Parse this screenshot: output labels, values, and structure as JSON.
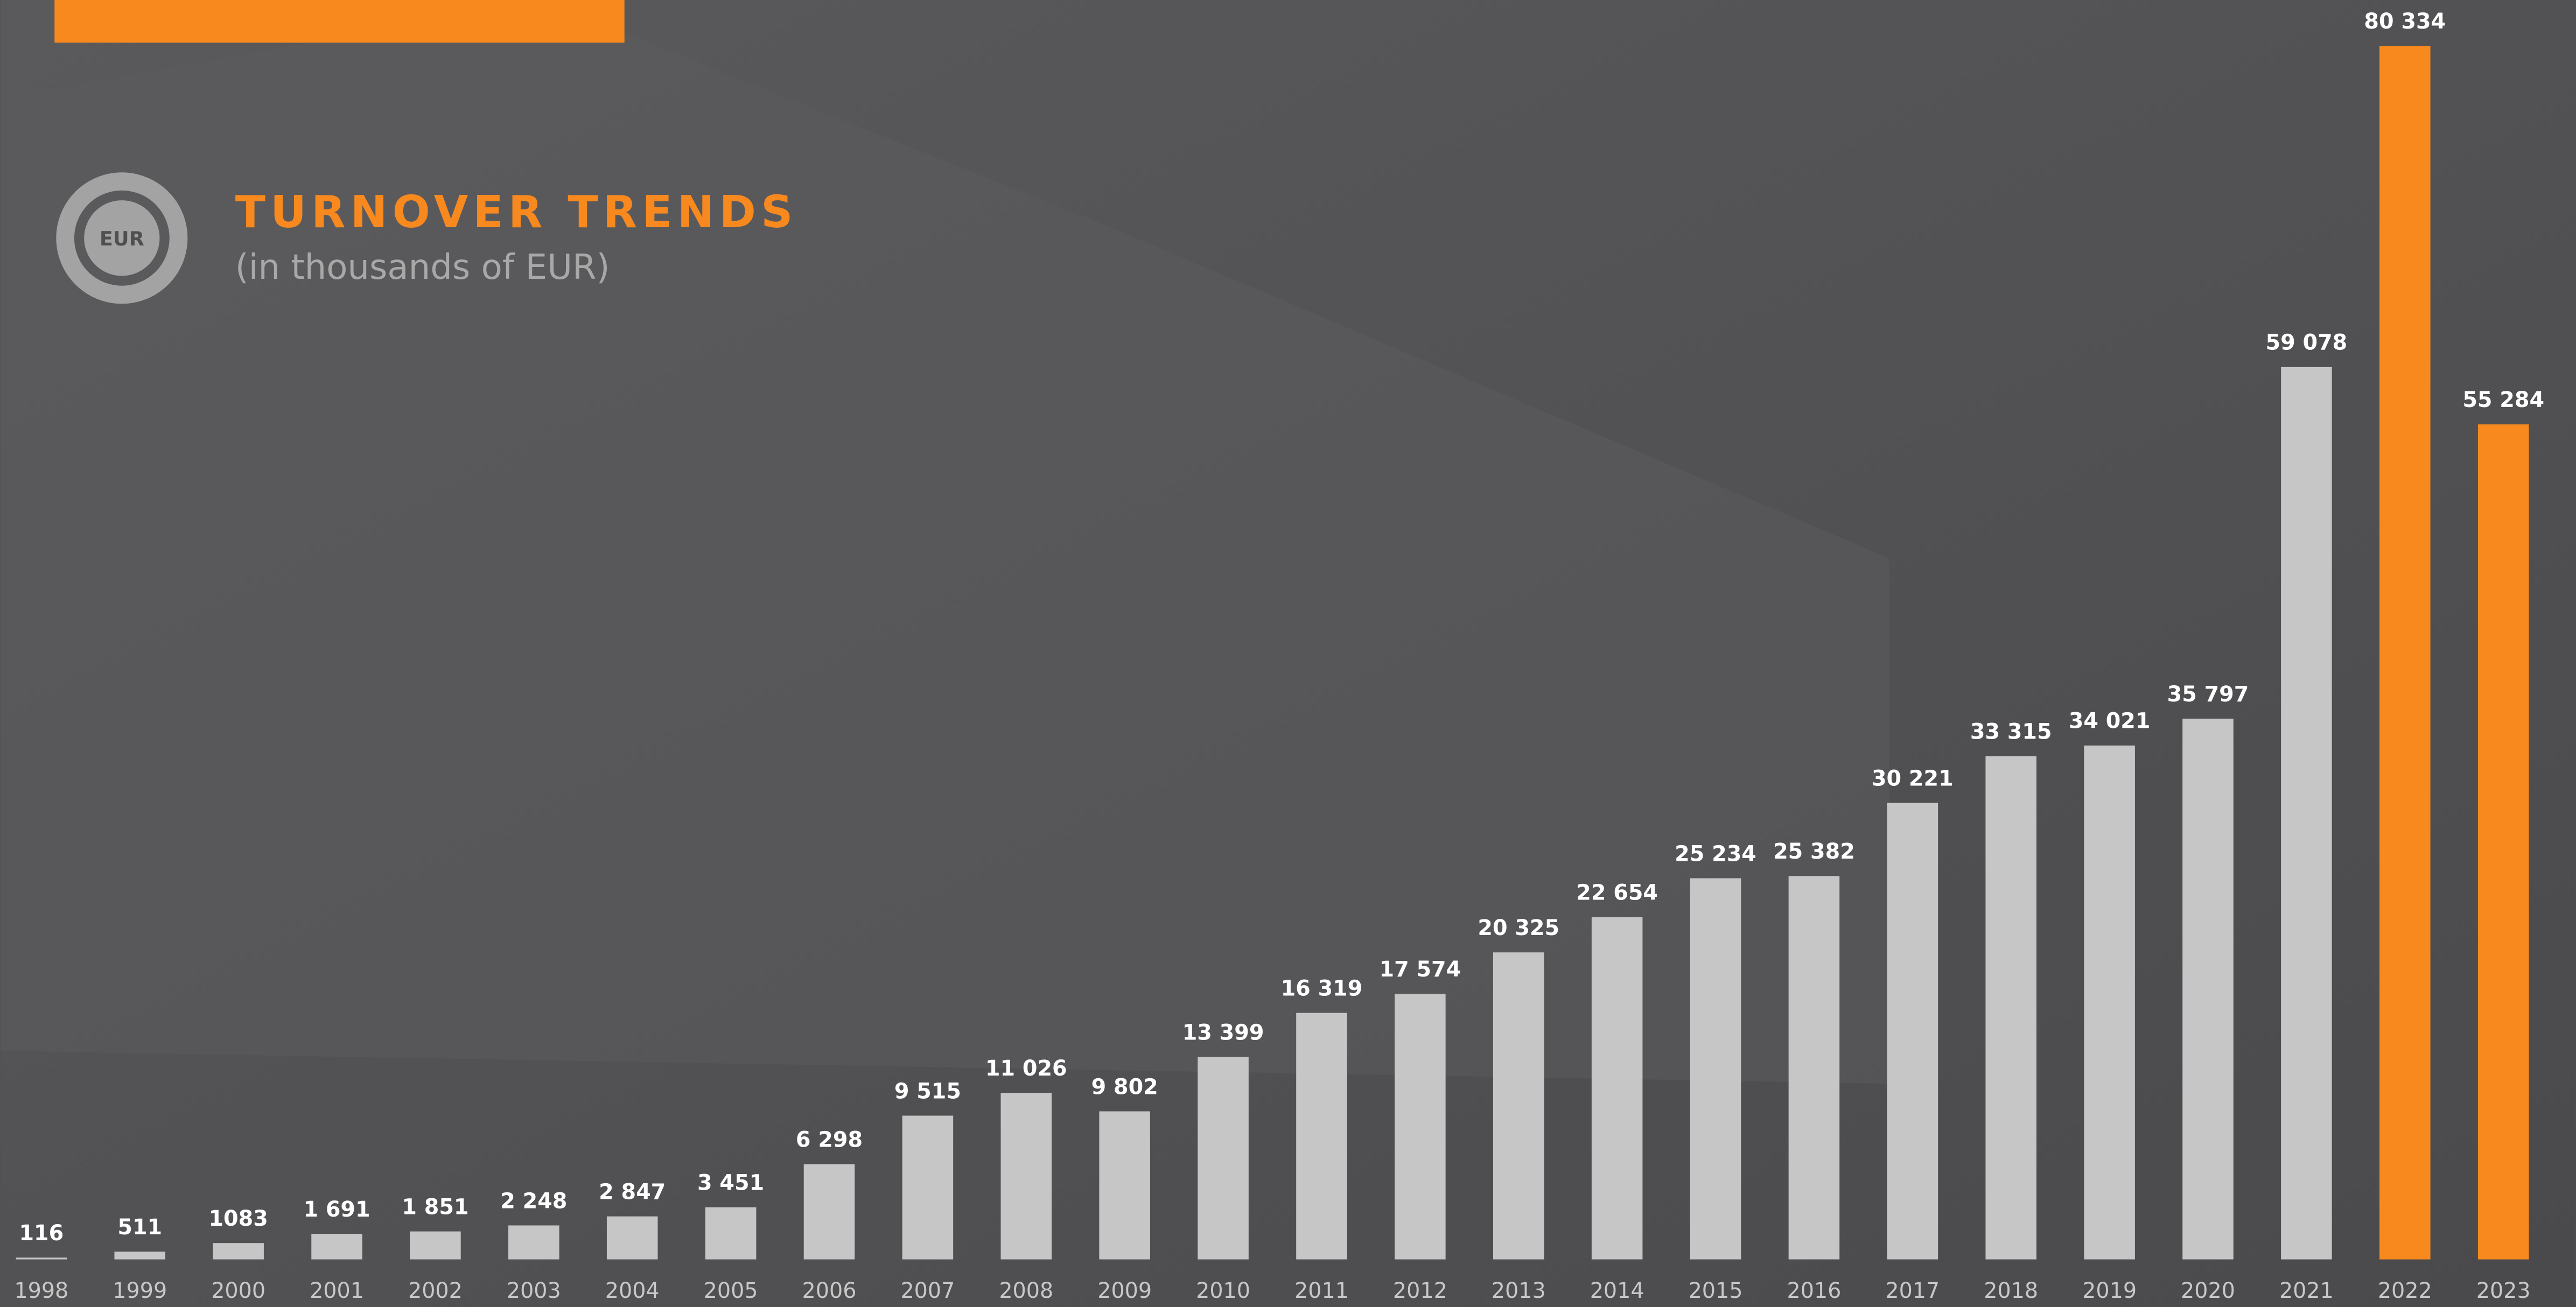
{
  "chart_data": {
    "type": "bar",
    "title": "TURNOVER TRENDS",
    "subtitle": "(in thousands of EUR)",
    "icon_label": "EUR",
    "categories": [
      "1998",
      "1999",
      "2000",
      "2001",
      "2002",
      "2003",
      "2004",
      "2005",
      "2006",
      "2007",
      "2008",
      "2009",
      "2010",
      "2011",
      "2012",
      "2013",
      "2014",
      "2015",
      "2016",
      "2017",
      "2018",
      "2019",
      "2020",
      "2021",
      "2022",
      "2023"
    ],
    "values": [
      116,
      511,
      1083,
      1691,
      1851,
      2248,
      2847,
      3451,
      6298,
      9515,
      11026,
      9802,
      13399,
      16319,
      17574,
      20325,
      22654,
      25234,
      25382,
      30221,
      33315,
      34021,
      35797,
      59078,
      80334,
      55284
    ],
    "value_labels": [
      "116",
      "511",
      "1083",
      "1 691",
      "1 851",
      "2 248",
      "2 847",
      "3 451",
      "6 298",
      "9 515",
      "11 026",
      "9 802",
      "13 399",
      "16 319",
      "17 574",
      "20 325",
      "22 654",
      "25 234",
      "25 382",
      "30 221",
      "33 315",
      "34 021",
      "35 797",
      "59 078",
      "80 334",
      "55 284"
    ],
    "colors": [
      "#c6c6c6",
      "#c6c6c6",
      "#c6c6c6",
      "#c6c6c6",
      "#c6c6c6",
      "#c6c6c6",
      "#c6c6c6",
      "#c6c6c6",
      "#c6c6c6",
      "#c6c6c6",
      "#c6c6c6",
      "#c6c6c6",
      "#c6c6c6",
      "#c6c6c6",
      "#c6c6c6",
      "#c6c6c6",
      "#c6c6c6",
      "#c6c6c6",
      "#c6c6c6",
      "#c6c6c6",
      "#c6c6c6",
      "#c6c6c6",
      "#c6c6c6",
      "#c6c6c6",
      "#f7891f",
      "#f7891f"
    ],
    "title_color": "#f7891f"
  }
}
